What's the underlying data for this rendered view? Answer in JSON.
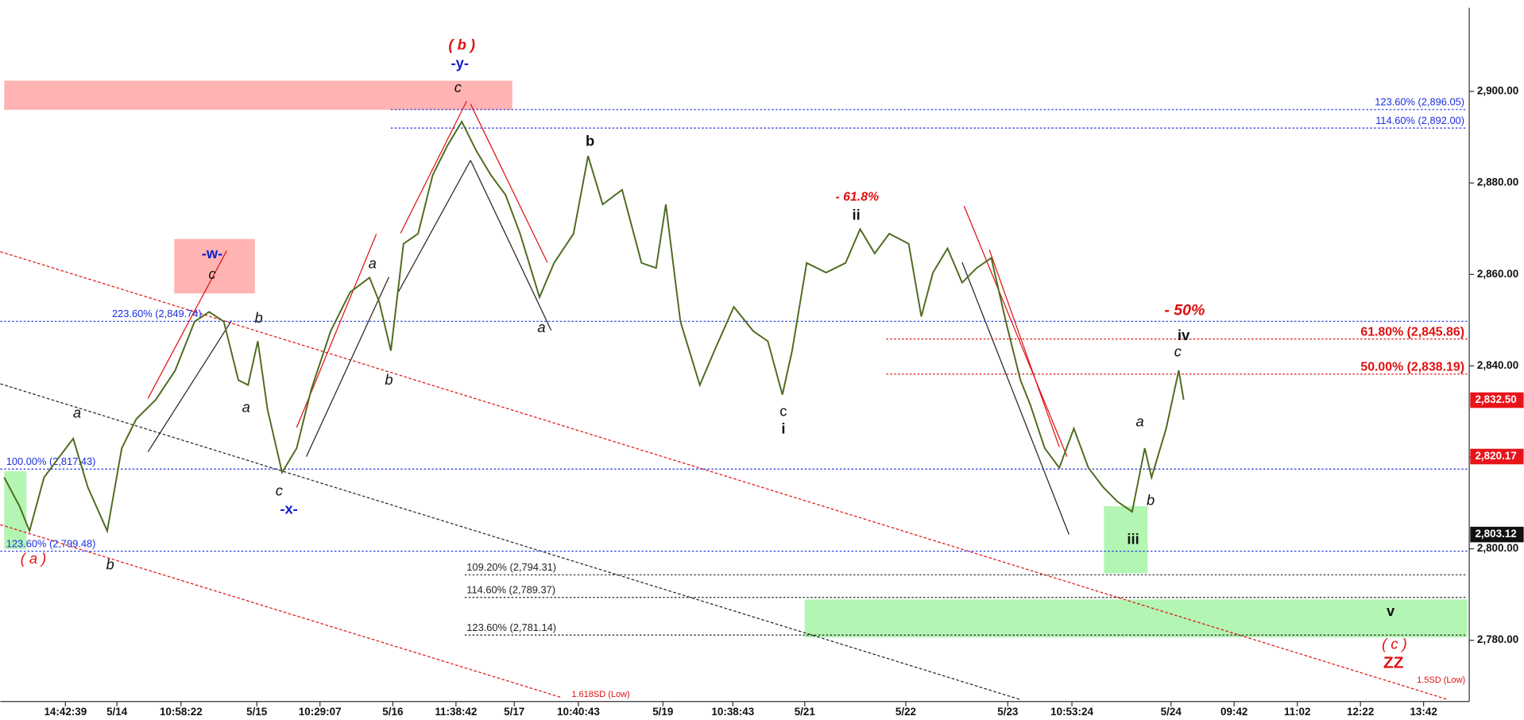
{
  "chart_data": {
    "type": "line",
    "x": [
      4,
      20,
      30,
      45,
      60,
      75,
      90,
      110,
      125,
      140,
      160,
      180,
      200,
      215,
      230,
      245,
      255,
      265,
      275,
      290,
      305,
      320,
      340,
      360,
      380,
      390,
      402,
      415,
      430,
      445,
      460,
      475,
      490,
      505,
      520,
      535,
      555,
      570,
      590,
      605,
      620,
      640,
      660,
      675,
      685,
      700,
      720,
      735,
      755,
      775,
      790,
      805,
      815,
      830,
      850,
      870,
      885,
      900,
      915,
      935,
      948,
      960,
      975,
      990,
      1005,
      1020,
      1035,
      1050,
      1060,
      1075,
      1090,
      1105,
      1120,
      1135,
      1150,
      1165,
      1178,
      1185,
      1200,
      1213,
      1218
    ],
    "series": [
      {
        "color": "#4d6b1e",
        "values": [
          2815.6,
          2809.2,
          2803.9,
          2815.6,
          2819.9,
          2824.1,
          2813.5,
          2803.9,
          2822.0,
          2828.4,
          2832.6,
          2839.0,
          2849.7,
          2851.8,
          2849.7,
          2836.9,
          2835.8,
          2845.4,
          2830.5,
          2816.7,
          2822.0,
          2834.8,
          2847.6,
          2856.1,
          2859.3,
          2854.0,
          2843.3,
          2866.7,
          2868.9,
          2881.7,
          2888.1,
          2893.4,
          2887.0,
          2881.7,
          2877.4,
          2868.9,
          2855.0,
          2862.5,
          2868.9,
          2885.9,
          2875.3,
          2878.5,
          2862.5,
          2861.4,
          2875.3,
          2849.7,
          2835.8,
          2843.3,
          2852.9,
          2847.6,
          2845.4,
          2833.7,
          2843.3,
          2862.5,
          2860.4,
          2862.5,
          2869.9,
          2864.6,
          2868.9,
          2866.7,
          2850.8,
          2860.4,
          2865.7,
          2858.2,
          2861.4,
          2863.6,
          2849.7,
          2836.9,
          2831.6,
          2822.0,
          2817.7,
          2826.3,
          2817.7,
          2813.5,
          2810.3,
          2808.1,
          2822.0,
          2815.6,
          2826.3,
          2839.0,
          2832.6
        ]
      }
    ],
    "xlim": [
      0,
      1510
    ],
    "ylim": [
      2766.6,
      2918.3
    ],
    "xticks": [
      {
        "value": 67,
        "label": "14:42:39"
      },
      {
        "value": 120,
        "label": "5/14"
      },
      {
        "value": 186,
        "label": "10:58:22"
      },
      {
        "value": 264,
        "label": "5/15"
      },
      {
        "value": 329,
        "label": "10:29:07"
      },
      {
        "value": 404,
        "label": "5/16"
      },
      {
        "value": 469,
        "label": "11:38:42"
      },
      {
        "value": 529,
        "label": "5/17"
      },
      {
        "value": 595,
        "label": "10:40:43"
      },
      {
        "value": 682,
        "label": "5/19"
      },
      {
        "value": 754,
        "label": "10:38:43"
      },
      {
        "value": 828,
        "label": "5/21"
      },
      {
        "value": 932,
        "label": "5/22"
      },
      {
        "value": 1037,
        "label": "5/23"
      },
      {
        "value": 1103,
        "label": "10:53:24"
      },
      {
        "value": 1205,
        "label": "5/24"
      },
      {
        "value": 1270,
        "label": "09:42"
      },
      {
        "value": 1335,
        "label": "11:02"
      },
      {
        "value": 1400,
        "label": "12:22"
      },
      {
        "value": 1465,
        "label": "13:42"
      }
    ],
    "yticks": [
      {
        "value": 2780,
        "label": "2,780.00"
      },
      {
        "value": 2800,
        "label": "2,800.00"
      },
      {
        "value": 2820,
        "label": "2,820.00"
      },
      {
        "value": 2840,
        "label": "2,840.00"
      },
      {
        "value": 2860,
        "label": "2,860.00"
      },
      {
        "value": 2880,
        "label": "2,880.00"
      },
      {
        "value": 2900,
        "label": "2,900.00"
      }
    ],
    "levels": [
      {
        "value": 2896.05,
        "label": "123.60% (2,896.05)",
        "color": "#1a2ee0"
      },
      {
        "value": 2892.0,
        "label": "114.60% (2,892.00)",
        "color": "#1a2ee0"
      },
      {
        "value": 2849.74,
        "label": "223.60% (2,849.74)",
        "color": "#1a2ee0"
      },
      {
        "value": 2845.86,
        "label": "61.80% (2,845.86)",
        "color": "#e01010"
      },
      {
        "value": 2838.19,
        "label": "50.00% (2,838.19)",
        "color": "#e01010"
      },
      {
        "value": 2817.43,
        "label": "100.00% (2,817.43)",
        "color": "#1a2ee0"
      },
      {
        "value": 2799.48,
        "label": "123.60% (2,799.48)",
        "color": "#1a2ee0"
      },
      {
        "value": 2794.31,
        "label": "109.20% (2,794.31)",
        "color": "#222222"
      },
      {
        "value": 2789.37,
        "label": "114.60% (2,789.37)",
        "color": "#222222"
      },
      {
        "value": 2781.14,
        "label": "123.60% (2,781.14)",
        "color": "#222222"
      }
    ],
    "price_tags": [
      {
        "value": 2832.5,
        "label": "2,832.50",
        "color": "#e8141b"
      },
      {
        "value": 2820.17,
        "label": "2,820.17",
        "color": "#e8141b"
      },
      {
        "value": 2803.12,
        "label": "2,803.12",
        "color": "#111111"
      }
    ],
    "annotations": [
      "( b )",
      "-y-",
      "c",
      "b",
      "- 61.8%",
      "ii",
      "-w-",
      "c",
      "a",
      "b",
      "a",
      "- 50%",
      "iv",
      "c",
      "a",
      "a",
      "b",
      "c",
      "i",
      "a",
      "c",
      "-x-",
      "b",
      "iii",
      "( a )",
      "b",
      "v",
      "( c )",
      "ZZ",
      "1.618SD (Low)",
      "1.5SD (Low)"
    ]
  }
}
